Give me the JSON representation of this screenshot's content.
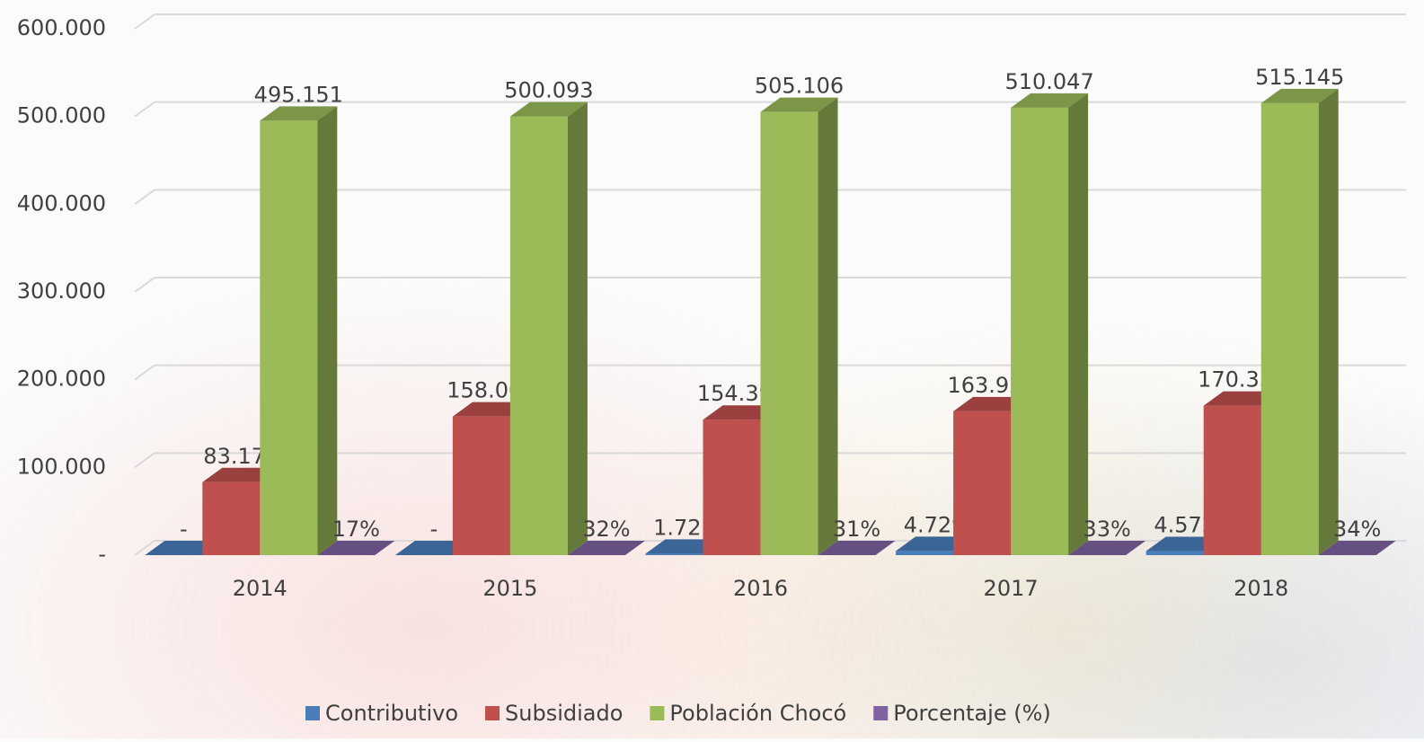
{
  "chart_data": {
    "type": "bar3d",
    "categories": [
      "2014",
      "2015",
      "2016",
      "2017",
      "2018"
    ],
    "series": [
      {
        "name": "Contributivo",
        "color": "#4a7ebb",
        "values": [
          0,
          0,
          1723,
          4729,
          4572
        ],
        "value_labels": [
          "-",
          "-",
          "1.723",
          "4.729",
          "4.572"
        ]
      },
      {
        "name": "Subsidiado",
        "color": "#c0504d",
        "values": [
          83175,
          158008,
          154397,
          163926,
          170331
        ],
        "value_labels": [
          "83.175",
          "158.008",
          "154.397",
          "163.926",
          "170.331"
        ]
      },
      {
        "name": "Población Chocó",
        "color": "#9bbb59",
        "values": [
          495151,
          500093,
          505106,
          510047,
          515145
        ],
        "value_labels": [
          "495.151",
          "500.093",
          "505.106",
          "510.047",
          "515.145"
        ]
      },
      {
        "name": "Porcentaje (%)",
        "color": "#8064a2",
        "values": [
          17,
          32,
          31,
          33,
          34
        ],
        "value_labels": [
          "17%",
          "32%",
          "31%",
          "33%",
          "34%"
        ]
      }
    ],
    "ylim": [
      0,
      600000
    ],
    "yticks": [
      {
        "value": 0,
        "label": "-"
      },
      {
        "value": 100000,
        "label": "100.000"
      },
      {
        "value": 200000,
        "label": "200.000"
      },
      {
        "value": 300000,
        "label": "300.000"
      },
      {
        "value": 400000,
        "label": "400.000"
      },
      {
        "value": 500000,
        "label": "500.000"
      },
      {
        "value": 600000,
        "label": "600.000"
      }
    ],
    "grid": true,
    "legend": "bottom"
  }
}
